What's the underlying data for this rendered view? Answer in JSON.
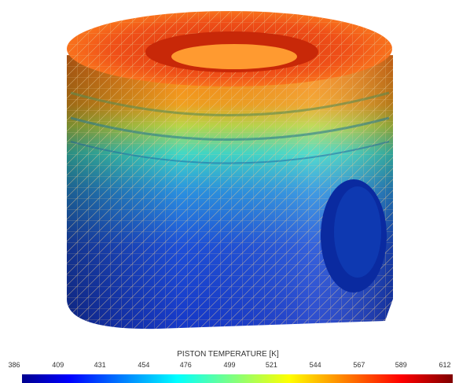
{
  "colorbar": {
    "title": "PISTON TEMPERATURE [K]",
    "lim": [
      386,
      612
    ],
    "ticks": [
      386,
      409,
      431,
      454,
      476,
      499,
      521,
      544,
      567,
      589,
      612
    ]
  }
}
